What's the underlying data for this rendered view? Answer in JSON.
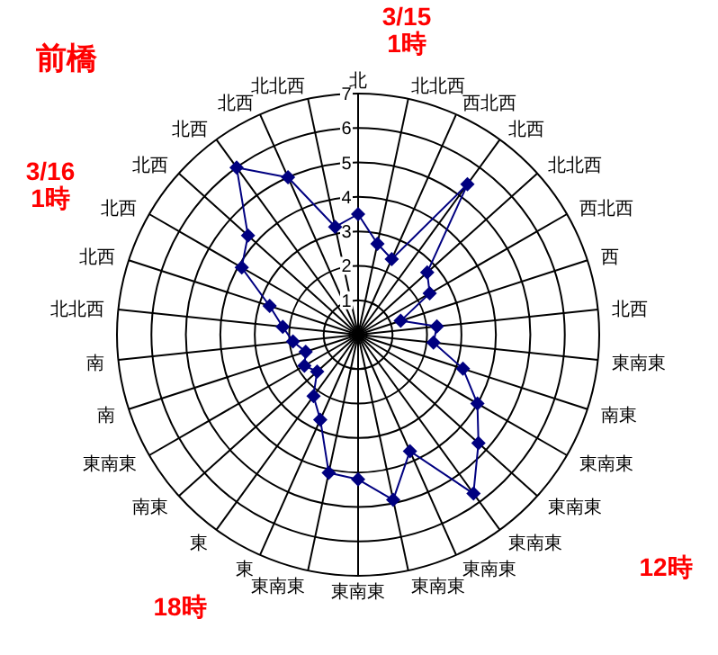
{
  "chart_data": {
    "type": "radar",
    "title": "前橋",
    "categories": [
      "北",
      "北北西",
      "西北西",
      "北西",
      "北北西",
      "西北西",
      "西",
      "北西",
      "東南東",
      "南東",
      "東南東",
      "東南東",
      "東南東",
      "東南東",
      "東南東",
      "東南東",
      "東南東",
      "東",
      "東",
      "南東",
      "東南東",
      "南",
      "南",
      "北北西",
      "北西",
      "北西",
      "北西",
      "北西",
      "北西",
      "北北西"
    ],
    "series": [
      {
        "color": "#000080",
        "values": [
          3.5,
          2.7,
          2.4,
          5.4,
          2.7,
          2.4,
          1.3,
          2.3,
          2.2,
          3.2,
          4.0,
          4.7,
          5.7,
          3.7,
          4.9,
          4.2,
          4.1,
          2.7,
          2.2,
          1.6,
          1.8,
          1.6,
          1.9,
          2.2,
          2.7,
          3.9,
          4.3,
          6.0,
          5.0,
          3.2
        ]
      }
    ],
    "ylim": [
      0,
      7
    ],
    "yticks": [
      1,
      2,
      3,
      4,
      5,
      6,
      7
    ],
    "grid": true,
    "marker": "diamond",
    "line_style": "solid",
    "annotations": [
      "3/15\n1時",
      "12時",
      "18時",
      "3/16\n1時"
    ]
  }
}
